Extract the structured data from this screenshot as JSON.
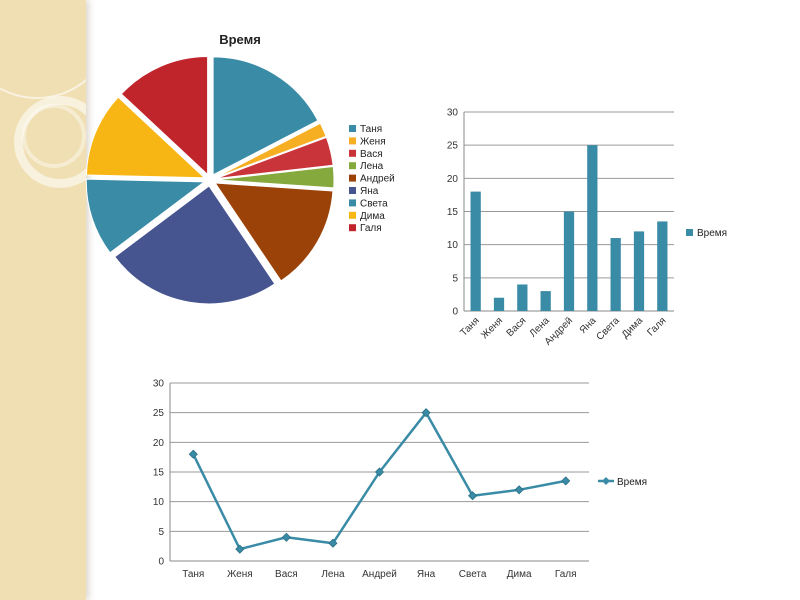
{
  "colors": {
    "teal": "#3a8ba6",
    "orange": "#f6ae22",
    "red": "#c8343a",
    "green": "#86a93e",
    "brown": "#9b4209",
    "navy": "#465590",
    "yellow": "#f8b614",
    "crimson": "#c0252c"
  },
  "chart_data": [
    {
      "type": "pie",
      "title": "Время",
      "legend_position": "right",
      "categories": [
        "Таня",
        "Женя",
        "Вася",
        "Лена",
        "Андрей",
        "Яна",
        "Света",
        "Дима",
        "Галя"
      ],
      "values": [
        18,
        2,
        4,
        3,
        15,
        25,
        11,
        12,
        13.5
      ],
      "slice_colors": [
        "#3a8ba6",
        "#f6ae22",
        "#c8343a",
        "#86a93e",
        "#9b4209",
        "#465590",
        "#3a8ba6",
        "#f8b614",
        "#c0252c"
      ]
    },
    {
      "type": "bar",
      "title": "",
      "legend_position": "right",
      "categories": [
        "Таня",
        "Женя",
        "Вася",
        "Лена",
        "Андрей",
        "Яна",
        "Света",
        "Дима",
        "Галя"
      ],
      "series": [
        {
          "name": "Время",
          "values": [
            18,
            2,
            4,
            3,
            15,
            25,
            11,
            12,
            13.5
          ],
          "color": "#3a8ba6"
        }
      ],
      "ylim": [
        0,
        30
      ],
      "yticks": [
        0,
        5,
        10,
        15,
        20,
        25,
        30
      ],
      "grid": true
    },
    {
      "type": "line",
      "title": "",
      "legend_position": "right",
      "categories": [
        "Таня",
        "Женя",
        "Вася",
        "Лена",
        "Андрей",
        "Яна",
        "Света",
        "Дима",
        "Галя"
      ],
      "series": [
        {
          "name": "Время",
          "values": [
            18,
            2,
            4,
            3,
            15,
            25,
            11,
            12,
            13.5
          ],
          "color": "#3a8ba6",
          "marker": "diamond"
        }
      ],
      "ylim": [
        0,
        30
      ],
      "yticks": [
        0,
        5,
        10,
        15,
        20,
        25,
        30
      ],
      "grid": true
    }
  ]
}
